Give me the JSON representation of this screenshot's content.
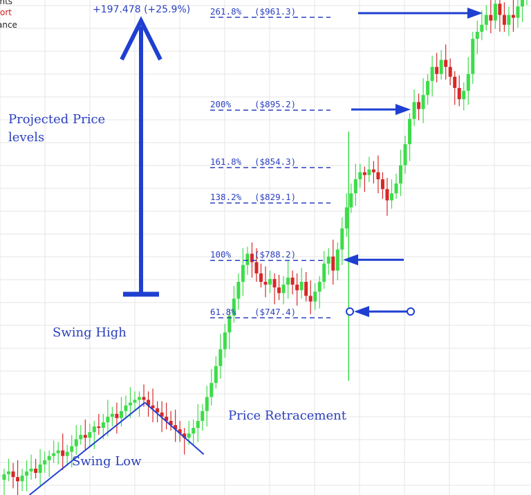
{
  "legend": {
    "items": [
      {
        "label": "Points",
        "color": "#222222"
      },
      {
        "label": "ort",
        "color": "#d32020"
      },
      {
        "label": "ance",
        "color": "#222222"
      }
    ]
  },
  "annotations": {
    "projected_change": "+197.478 (+25.9%)",
    "projected_price_line1": "Projected Price",
    "projected_price_line2": "levels",
    "swing_high": "Swing High",
    "swing_low": "Swing Low",
    "price_retracement": "Price Retracement"
  },
  "colors": {
    "annotation_blue": "#1f3fd1",
    "up_candle": "#3ddc4a",
    "down_candle": "#d62828",
    "grid": "#e6e6e6",
    "level_text": "#2a3fbf"
  },
  "chart_data": {
    "type": "candlestick",
    "title": "",
    "xlabel": "",
    "ylabel": "",
    "grid": true,
    "fibonacci_levels": [
      {
        "label": "261.8%",
        "price_label": "($961.3)",
        "ratio": 2.618,
        "price": 961.3
      },
      {
        "label": "200%",
        "price_label": "($895.2)",
        "ratio": 2.0,
        "price": 895.2
      },
      {
        "label": "161.8%",
        "price_label": "($854.3)",
        "ratio": 1.618,
        "price": 854.3
      },
      {
        "label": "138.2%",
        "price_label": "($829.1)",
        "ratio": 1.382,
        "price": 829.1
      },
      {
        "label": "100%",
        "price_label": "($788.2)",
        "ratio": 1.0,
        "price": 788.2
      },
      {
        "label": "61.8%",
        "price_label": "($747.4)",
        "ratio": 0.618,
        "price": 747.4
      }
    ],
    "closes": [
      635,
      637,
      633,
      630,
      634,
      637,
      639,
      636,
      642,
      645,
      648,
      650,
      652,
      648,
      651,
      655,
      660,
      663,
      661,
      665,
      669,
      668,
      672,
      676,
      678,
      675,
      680,
      684,
      686,
      688,
      690,
      688,
      684,
      682,
      679,
      676,
      673,
      670,
      667,
      664,
      661,
      664,
      668,
      673,
      680,
      690,
      700,
      712,
      724,
      736,
      748,
      760,
      772,
      784,
      792,
      786,
      778,
      772,
      770,
      774,
      768,
      764,
      770,
      775,
      770,
      766,
      772,
      762,
      758,
      765,
      772,
      785,
      790,
      780,
      795,
      810,
      825,
      835,
      845,
      850,
      848,
      852,
      850,
      845,
      838,
      830,
      835,
      842,
      855,
      870,
      888,
      900,
      895,
      905,
      915,
      925,
      920,
      930,
      925,
      918,
      910,
      902,
      908,
      920,
      945,
      950,
      955,
      962,
      958,
      970,
      962,
      955,
      962,
      960,
      968,
      975,
      980
    ],
    "swing_low_index": 1,
    "swing_high_index": 30,
    "retracement_low_index": 40,
    "breakout_index": 74
  }
}
